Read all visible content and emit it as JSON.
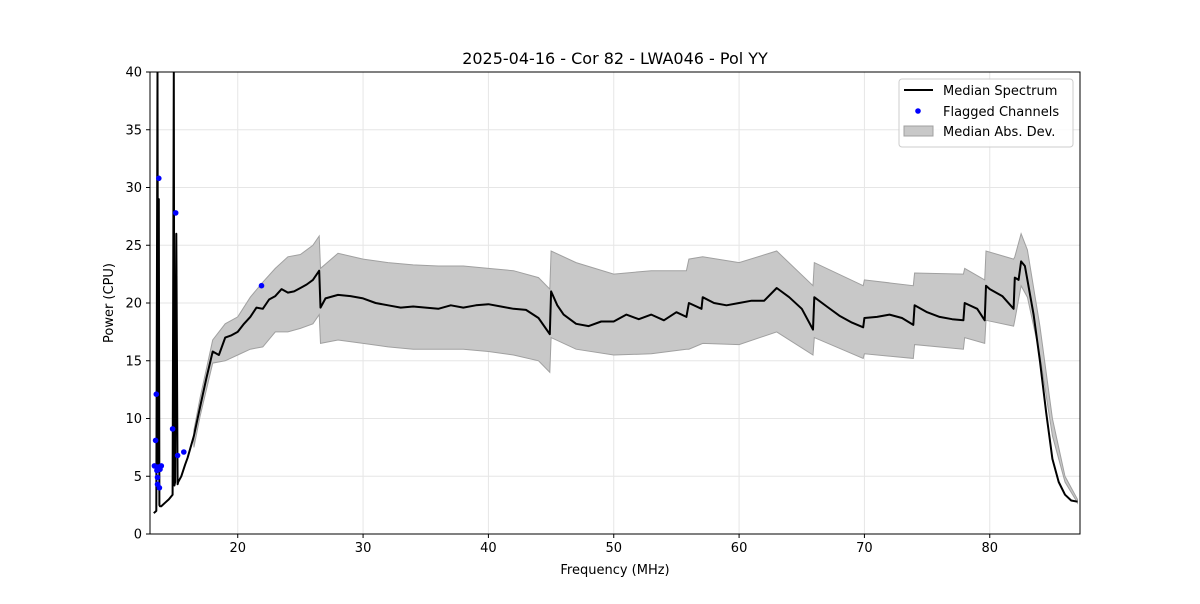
{
  "chart_data": {
    "type": "line",
    "title": "2025-04-16 - Cor 82 - LWA046 - Pol YY",
    "xlabel": "Frequency (MHz)",
    "ylabel": "Power (CPU)",
    "xlim": [
      13.0,
      87.2
    ],
    "ylim": [
      0,
      40
    ],
    "xticks": [
      20,
      30,
      40,
      50,
      60,
      70,
      80
    ],
    "yticks": [
      0,
      5,
      10,
      15,
      20,
      25,
      30,
      35,
      40
    ],
    "grid": true,
    "legend_position": "top-right",
    "legend": [
      "Median Spectrum",
      "Flagged Channels",
      "Median Abs. Dev."
    ],
    "colors": {
      "line": "#000000",
      "flagged": "#0000ff",
      "band_fill": "#c8c8c8",
      "band_edge": "#a0a0a0",
      "grid": "#e6e6e6"
    },
    "series": [
      {
        "name": "Median Spectrum",
        "x": [
          13.3,
          13.5,
          13.6,
          13.65,
          13.7,
          13.75,
          13.8,
          13.9,
          14.0,
          14.2,
          14.5,
          14.8,
          14.9,
          14.95,
          15.0,
          15.1,
          15.2,
          15.25,
          15.3,
          15.5,
          15.8,
          16.0,
          16.5,
          17.0,
          17.5,
          18.0,
          18.5,
          19.0,
          19.5,
          20.0,
          20.5,
          21.0,
          21.5,
          22.0,
          22.5,
          23.0,
          23.5,
          24.0,
          24.5,
          25.0,
          25.5,
          26.0,
          26.5,
          26.6,
          27.0,
          28.0,
          29.0,
          30.0,
          31.0,
          32.0,
          33.0,
          34.0,
          35.0,
          36.0,
          37.0,
          38.0,
          39.0,
          40.0,
          41.0,
          42.0,
          43.0,
          44.0,
          44.9,
          45.0,
          45.5,
          46.0,
          47.0,
          48.0,
          49.0,
          50.0,
          51.0,
          52.0,
          53.0,
          54.0,
          55.0,
          55.8,
          56.0,
          57.0,
          57.1,
          58.0,
          59.0,
          60.0,
          61.0,
          62.0,
          63.0,
          64.0,
          65.0,
          65.9,
          66.0,
          67.0,
          68.0,
          69.0,
          69.9,
          70.0,
          71.0,
          72.0,
          73.0,
          73.9,
          74.0,
          75.0,
          76.0,
          77.0,
          77.9,
          78.0,
          79.0,
          79.6,
          79.7,
          80.0,
          81.0,
          81.9,
          82.0,
          82.3,
          82.5,
          82.8,
          83.0,
          83.5,
          84.0,
          84.5,
          85.0,
          85.5,
          86.0,
          86.5,
          87.0
        ],
        "values": [
          1.8,
          2.0,
          40.0,
          6.0,
          29.0,
          2.5,
          2.4,
          2.4,
          2.5,
          2.7,
          3.0,
          3.4,
          40.0,
          4.2,
          4.5,
          26.0,
          4.3,
          4.5,
          4.6,
          5.0,
          6.0,
          6.6,
          8.5,
          11.0,
          13.5,
          15.8,
          15.5,
          17.0,
          17.2,
          17.5,
          18.2,
          18.8,
          19.6,
          19.5,
          20.3,
          20.6,
          21.2,
          20.9,
          21.0,
          21.3,
          21.6,
          22.0,
          22.8,
          19.6,
          20.4,
          20.7,
          20.6,
          20.4,
          20.0,
          19.8,
          19.6,
          19.7,
          19.6,
          19.5,
          19.8,
          19.6,
          19.8,
          19.9,
          19.7,
          19.5,
          19.4,
          18.7,
          17.3,
          21.0,
          19.8,
          19.0,
          18.2,
          18.0,
          18.4,
          18.4,
          19.0,
          18.6,
          19.0,
          18.5,
          19.2,
          18.8,
          20.0,
          19.5,
          20.5,
          20.0,
          19.8,
          20.0,
          20.2,
          20.2,
          21.3,
          20.5,
          19.5,
          17.7,
          20.5,
          19.7,
          18.9,
          18.3,
          17.9,
          18.7,
          18.8,
          19.0,
          18.7,
          18.1,
          19.8,
          19.2,
          18.8,
          18.6,
          18.5,
          20.0,
          19.5,
          18.5,
          21.5,
          21.2,
          20.6,
          19.5,
          22.2,
          22.0,
          23.6,
          23.2,
          22.0,
          19.0,
          15.0,
          10.5,
          6.5,
          4.5,
          3.4,
          2.9,
          2.8
        ]
      }
    ],
    "band": {
      "name": "Median Abs. Dev.",
      "x": [
        16.5,
        17.0,
        18.0,
        19.0,
        20.0,
        21.0,
        22.0,
        23.0,
        24.0,
        25.0,
        26.0,
        26.5,
        26.6,
        28.0,
        30.0,
        32.0,
        34.0,
        36.0,
        38.0,
        40.0,
        42.0,
        44.0,
        44.9,
        45.0,
        47.0,
        50.0,
        53.0,
        55.8,
        56.0,
        57.1,
        60.0,
        63.0,
        65.9,
        66.0,
        69.9,
        70.0,
        73.9,
        74.0,
        77.9,
        78.0,
        79.6,
        79.7,
        81.9,
        82.0,
        82.5,
        83.0,
        84.0,
        85.0,
        86.0,
        87.0
      ],
      "upper": [
        9.0,
        11.8,
        16.8,
        18.2,
        18.8,
        20.5,
        21.8,
        23.0,
        24.0,
        24.2,
        25.0,
        25.8,
        23.0,
        24.3,
        23.8,
        23.5,
        23.3,
        23.2,
        23.2,
        23.0,
        22.8,
        22.2,
        21.2,
        24.5,
        23.5,
        22.5,
        22.8,
        22.8,
        23.8,
        24.0,
        23.5,
        24.5,
        21.5,
        23.5,
        21.5,
        22.0,
        21.5,
        22.6,
        22.5,
        23.0,
        22.0,
        24.5,
        23.8,
        24.0,
        26.0,
        24.6,
        18.0,
        10.0,
        5.0,
        3.0
      ],
      "lower": [
        7.5,
        10.2,
        14.8,
        15.0,
        15.5,
        16.0,
        16.2,
        17.5,
        17.5,
        17.8,
        18.2,
        19.0,
        16.5,
        16.8,
        16.5,
        16.2,
        16.0,
        16.0,
        16.0,
        15.8,
        15.5,
        15.0,
        14.0,
        17.0,
        16.0,
        15.5,
        15.6,
        16.0,
        16.0,
        16.5,
        16.4,
        17.5,
        15.5,
        17.0,
        15.2,
        15.6,
        15.2,
        16.4,
        16.0,
        17.0,
        16.5,
        18.5,
        18.0,
        18.5,
        21.5,
        20.5,
        15.5,
        8.5,
        4.5,
        2.7
      ]
    },
    "flagged": {
      "name": "Flagged Channels",
      "x": [
        13.35,
        13.45,
        13.5,
        13.55,
        13.6,
        13.7,
        13.8,
        13.9,
        14.8,
        15.05,
        15.2,
        15.7,
        21.9,
        13.75,
        13.65,
        13.6
      ],
      "y": [
        5.9,
        8.1,
        12.1,
        5.5,
        4.3,
        30.8,
        5.6,
        5.9,
        9.1,
        27.8,
        6.8,
        7.1,
        21.5,
        4.0,
        5.8,
        4.9
      ]
    }
  }
}
